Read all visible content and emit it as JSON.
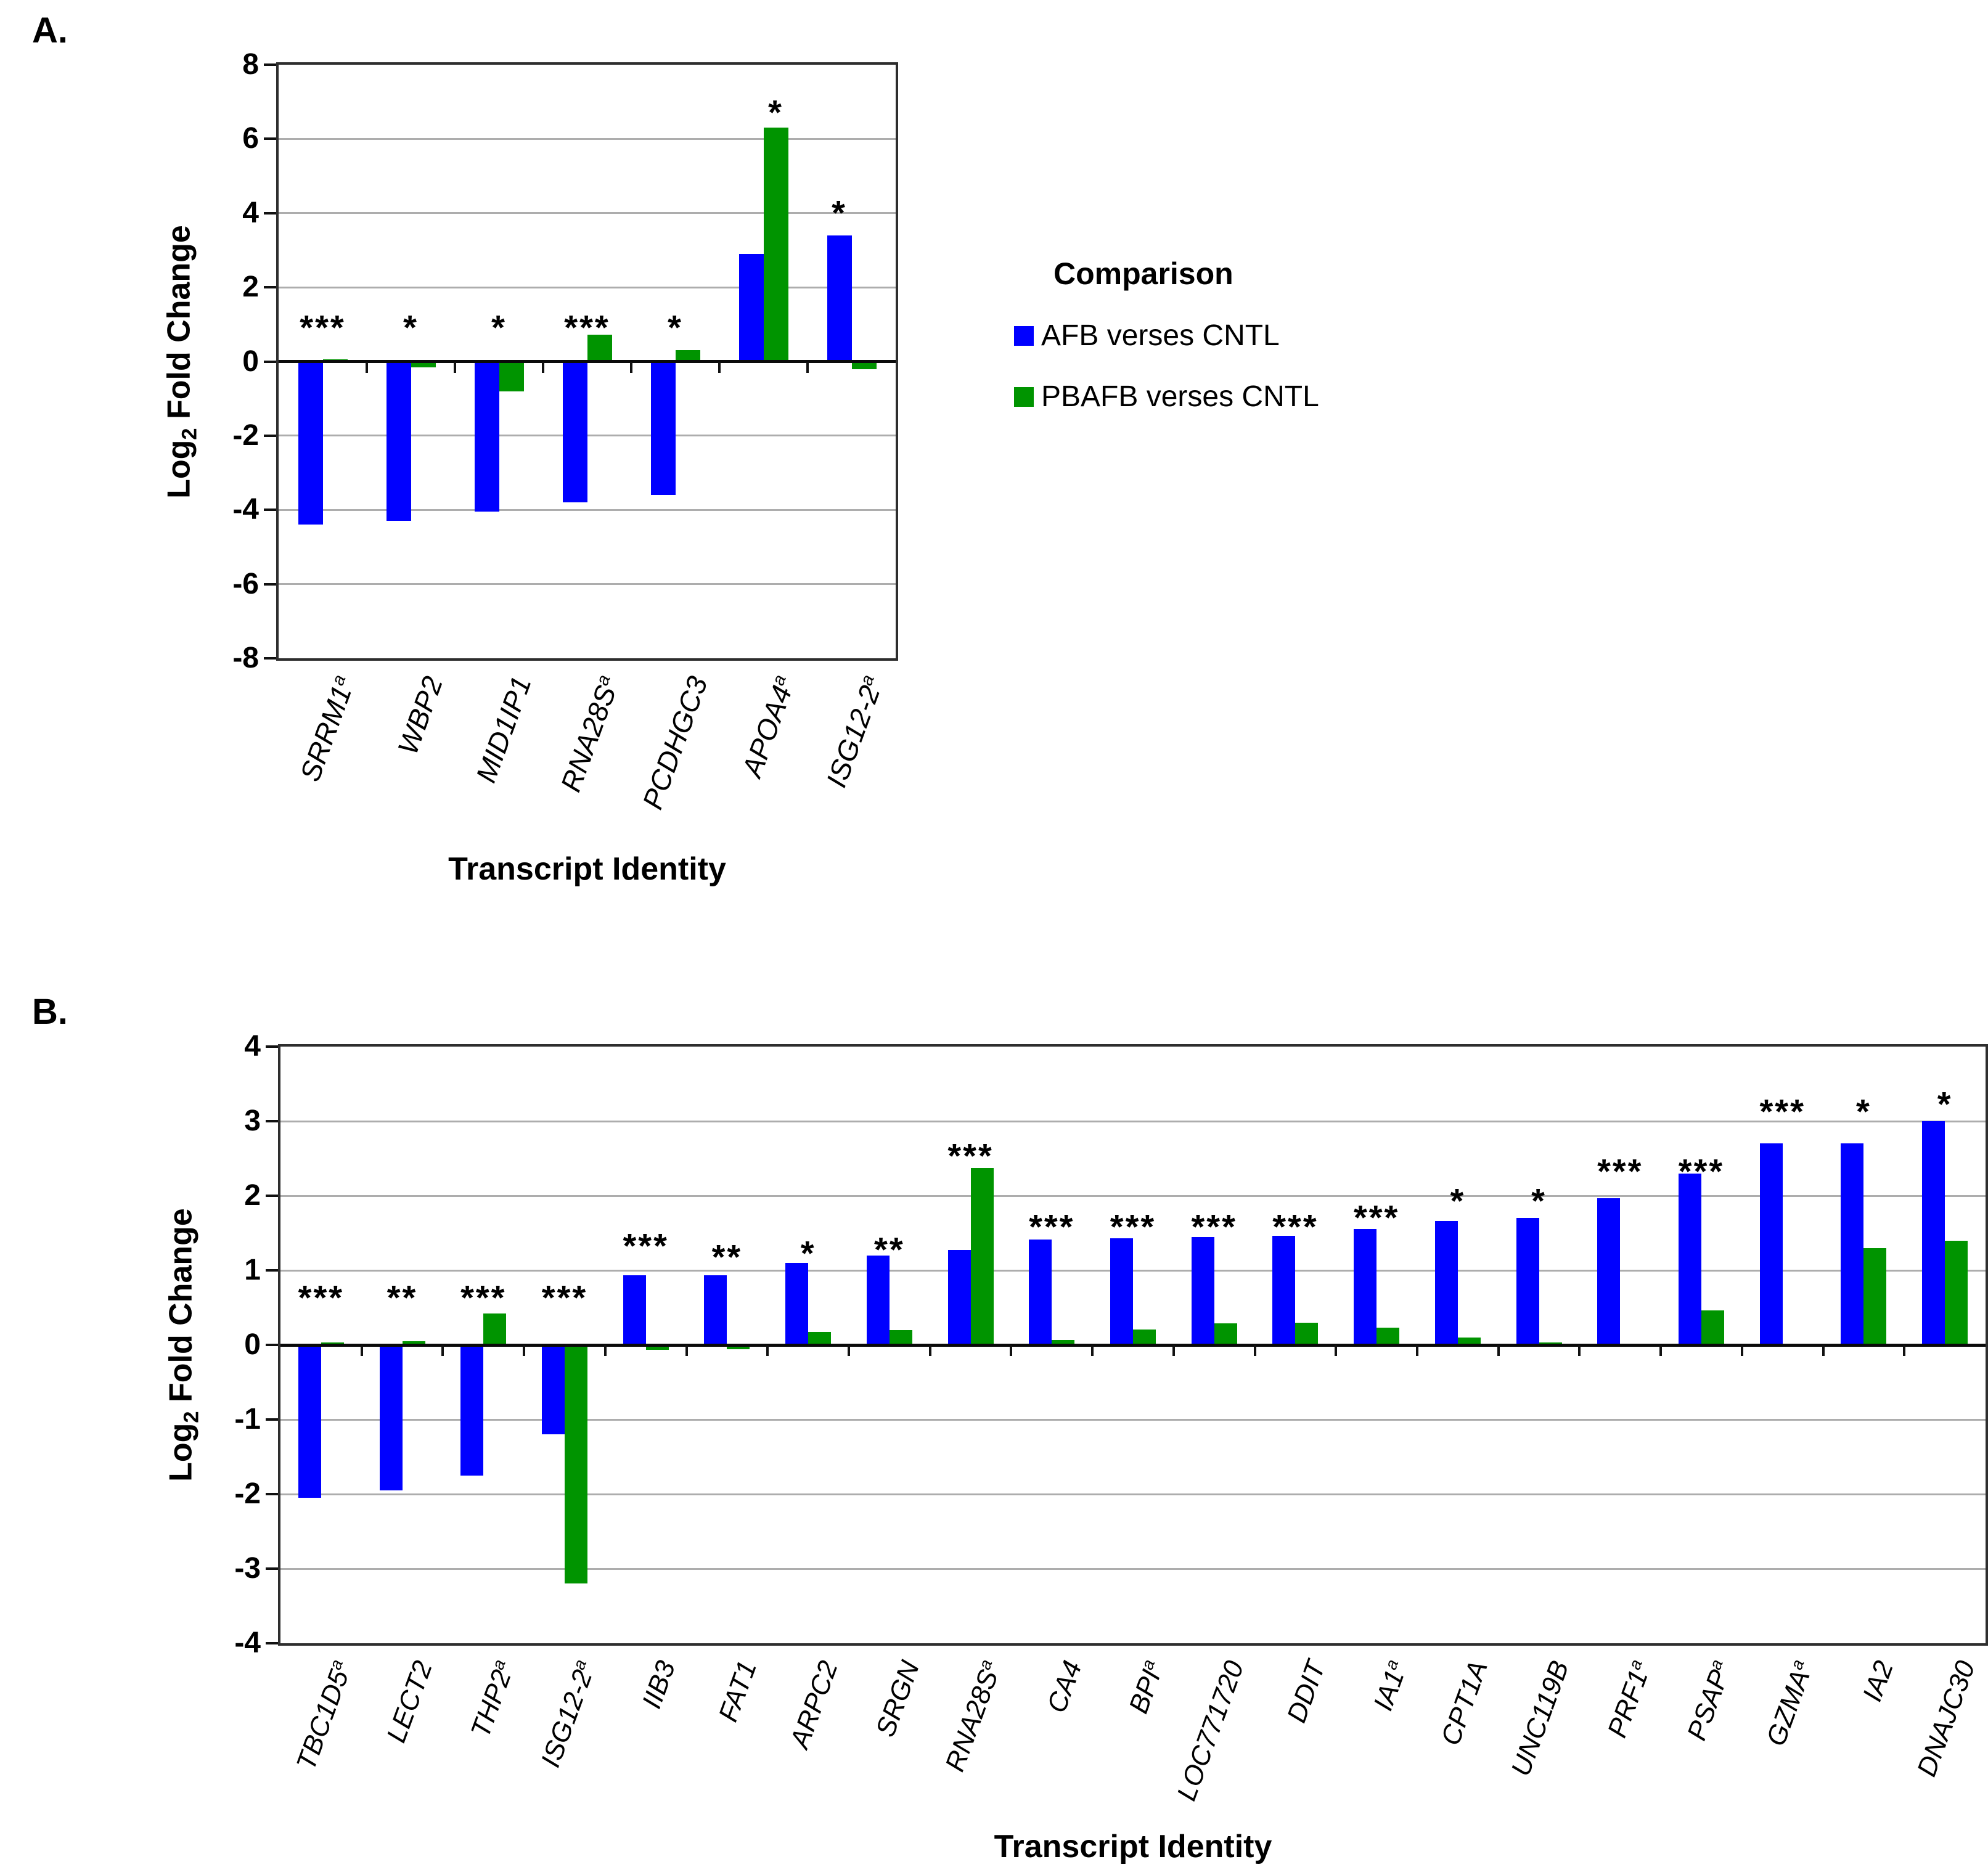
{
  "figure": {
    "panels": [
      {
        "label": "A."
      },
      {
        "label": "B."
      }
    ]
  },
  "legend": {
    "title": "Comparison",
    "items": [
      {
        "label": "AFB verses CNTL",
        "color": "#0000FF",
        "swatch": "blue-square"
      },
      {
        "label": "PBAFB verses CNTL",
        "color": "#009400",
        "swatch": "green-square"
      }
    ]
  },
  "chart_data": [
    {
      "panel": "A",
      "type": "bar",
      "title": "",
      "xlabel": "Transcript Identity",
      "ylabel": "Log2 Fold Change",
      "ylabel_parts": {
        "pre": "Log",
        "sub": "2",
        "post": " Fold Change"
      },
      "ylim": [
        -8,
        8
      ],
      "ytick_step": 2,
      "grid": true,
      "legend_position": "right",
      "categories": [
        "SRRM1",
        "WBP2",
        "MID1IP1",
        "RNA28S",
        "PCDHGC3",
        "APOA4",
        "ISG12-2"
      ],
      "superscripts": [
        "a",
        "",
        "",
        "a",
        "",
        "a",
        "a"
      ],
      "series": [
        {
          "name": "AFB verses CNTL",
          "color": "#0000FF",
          "values": [
            -4.4,
            -4.3,
            -4.05,
            -3.8,
            -3.6,
            2.9,
            3.4
          ]
        },
        {
          "name": "PBAFB verses CNTL",
          "color": "#009400",
          "values": [
            0.05,
            -0.15,
            -0.8,
            0.73,
            0.3,
            6.3,
            -0.2
          ]
        }
      ],
      "significance": [
        {
          "label": "***",
          "y": 1.05,
          "dx": 0
        },
        {
          "label": "*",
          "y": 1.05,
          "dx": 0
        },
        {
          "label": "*",
          "y": 1.05,
          "dx": 0
        },
        {
          "label": "***",
          "y": 1.05,
          "dx": 0
        },
        {
          "label": "*",
          "y": 1.05,
          "dx": 0
        },
        {
          "label": "*",
          "y": 6.85,
          "dx": 20
        },
        {
          "label": "*",
          "y": 4.15,
          "dx": -20
        }
      ]
    },
    {
      "panel": "B",
      "type": "bar",
      "title": "",
      "xlabel": "Transcript Identity",
      "ylabel": "Log2 Fold Change",
      "ylabel_parts": {
        "pre": "Log",
        "sub": "2",
        "post": " Fold Change"
      },
      "ylim": [
        -4,
        4
      ],
      "ytick_step": 1,
      "grid": true,
      "legend_position": "none",
      "categories": [
        "TBC1D5",
        "LECT2",
        "THP2",
        "ISG12-2",
        "IIB3",
        "FAT1",
        "ARPC2",
        "SRGN",
        "RNA28S",
        "CA4",
        "BPI",
        "LOC771720",
        "DDIT",
        "IA1",
        "CPT1A",
        "UNC119B",
        "PRF1",
        "PSAP",
        "GZMA",
        "IA2",
        "DNAJC30"
      ],
      "superscripts": [
        "a",
        "",
        "a",
        "a",
        "",
        "",
        "",
        "",
        "a",
        "",
        "a",
        "",
        "",
        "a",
        "",
        "",
        "a",
        "a",
        "a",
        "",
        ""
      ],
      "series": [
        {
          "name": "AFB verses CNTL",
          "color": "#0000FF",
          "values": [
            -2.05,
            -1.95,
            -1.75,
            -1.2,
            0.93,
            0.93,
            1.1,
            1.2,
            1.27,
            1.41,
            1.43,
            1.45,
            1.46,
            1.55,
            1.66,
            1.7,
            1.97,
            2.3,
            2.7,
            2.7,
            3.0
          ]
        },
        {
          "name": "PBAFB verses CNTL",
          "color": "#009400",
          "values": [
            0.03,
            0.05,
            0.42,
            -3.2,
            -0.07,
            -0.06,
            0.17,
            0.2,
            2.37,
            0.07,
            0.21,
            0.29,
            0.3,
            0.23,
            0.1,
            0.03,
            0.02,
            0.46,
            0.02,
            1.3,
            1.4
          ]
        }
      ],
      "significance": [
        {
          "label": "***",
          "y": 0.7,
          "dx": 0
        },
        {
          "label": "**",
          "y": 0.7,
          "dx": 0
        },
        {
          "label": "***",
          "y": 0.7,
          "dx": 0
        },
        {
          "label": "***",
          "y": 0.7,
          "dx": 0
        },
        {
          "label": "***",
          "y": 1.4,
          "dx": 0
        },
        {
          "label": "**",
          "y": 1.25,
          "dx": 0
        },
        {
          "label": "*",
          "y": 1.3,
          "dx": 0
        },
        {
          "label": "**",
          "y": 1.35,
          "dx": 0
        },
        {
          "label": "***",
          "y": 2.6,
          "dx": 0
        },
        {
          "label": "***",
          "y": 1.65,
          "dx": 0
        },
        {
          "label": "***",
          "y": 1.65,
          "dx": 0
        },
        {
          "label": "***",
          "y": 1.65,
          "dx": 0
        },
        {
          "label": "***",
          "y": 1.65,
          "dx": 0
        },
        {
          "label": "***",
          "y": 1.78,
          "dx": 0
        },
        {
          "label": "*",
          "y": 2.0,
          "dx": 0
        },
        {
          "label": "*",
          "y": 2.0,
          "dx": 0
        },
        {
          "label": "***",
          "y": 2.4,
          "dx": 0
        },
        {
          "label": "***",
          "y": 2.4,
          "dx": 0
        },
        {
          "label": "***",
          "y": 3.2,
          "dx": 0
        },
        {
          "label": "*",
          "y": 3.2,
          "dx": 0
        },
        {
          "label": "*",
          "y": 3.3,
          "dx": 0
        }
      ]
    }
  ]
}
